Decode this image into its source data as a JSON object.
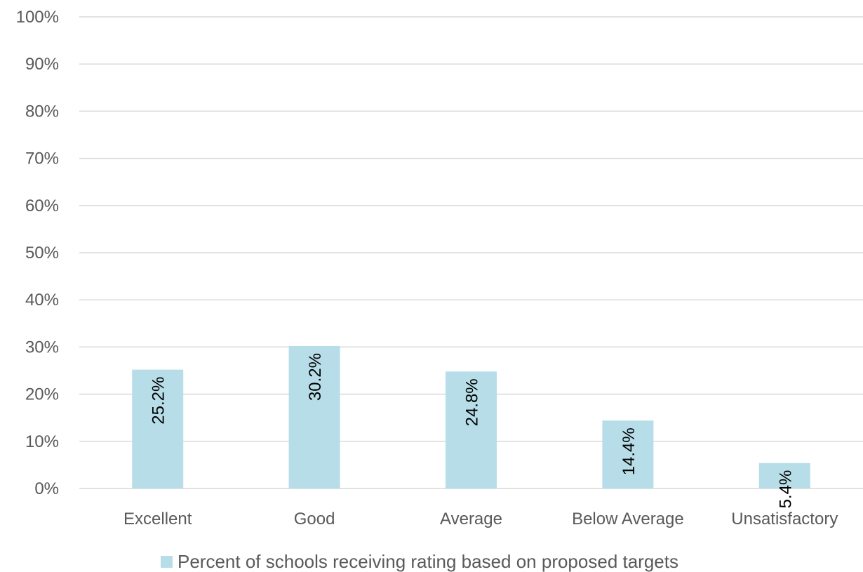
{
  "chart_data": {
    "type": "bar",
    "categories": [
      "Excellent",
      "Good",
      "Average",
      "Below Average",
      "Unsatisfactory"
    ],
    "series": [
      {
        "name": "Percent of schools receiving rating based on proposed targets",
        "values": [
          25.2,
          30.2,
          24.8,
          14.4,
          5.4
        ],
        "color": "#b7dde8"
      }
    ],
    "data_labels": [
      "25.2%",
      "30.2%",
      "24.8%",
      "14.4%",
      "5.4%"
    ],
    "title": "",
    "xlabel": "",
    "ylabel": "",
    "ylim": [
      0,
      100
    ],
    "y_ticks": [
      "0%",
      "10%",
      "20%",
      "30%",
      "40%",
      "50%",
      "60%",
      "70%",
      "80%",
      "90%",
      "100%"
    ],
    "grid": true,
    "legend_position": "bottom"
  }
}
